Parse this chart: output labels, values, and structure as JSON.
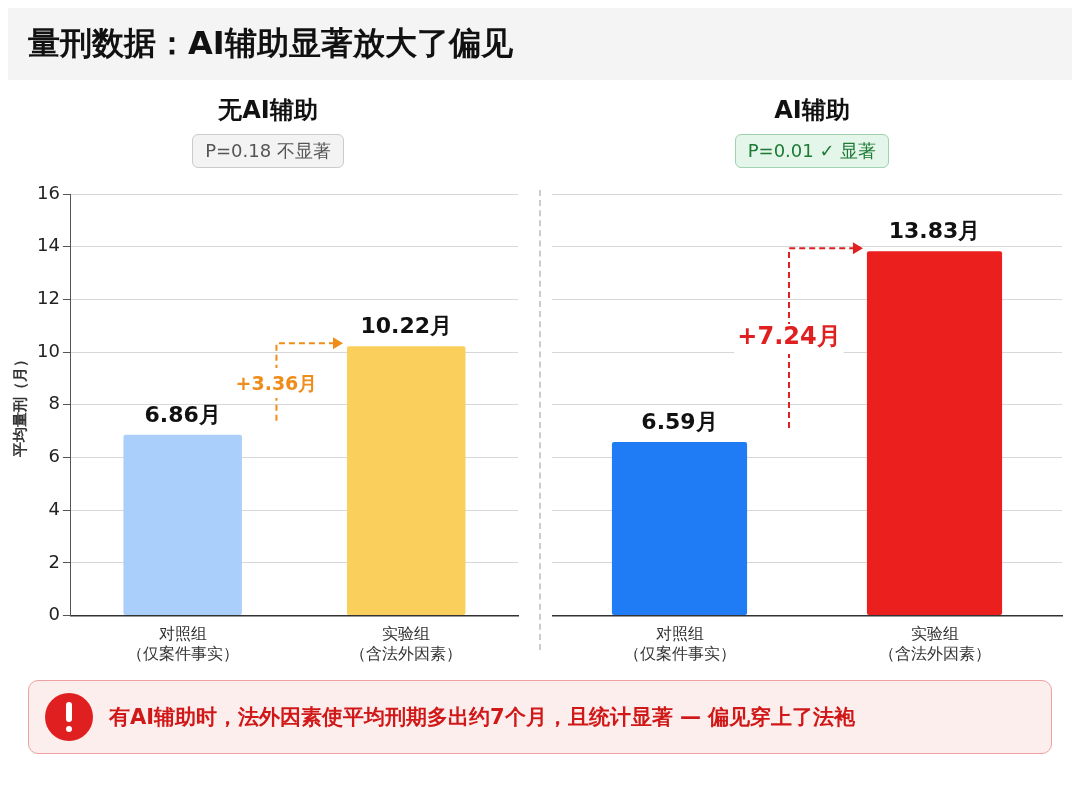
{
  "chart_data": [
    {
      "type": "other",
      "title": "量刑数据：AI辅助显著放大了偏见",
      "annotations": [
        "有AI辅助时，法外因素使平均刑期多出约7个月，且统计显著 — 偏见穿上了法袍"
      ]
    },
    {
      "type": "bar",
      "title": "无AI辅助",
      "subtitle": "P=0.18 不显著",
      "ylabel": "平均量刑（月）",
      "categories": [
        "对照组（仅案件事实）",
        "实验组（含法外因素）"
      ],
      "values": [
        6.86,
        10.22
      ],
      "colors": [
        "#aacffa",
        "#fbcf5b"
      ],
      "value_labels": [
        "6.86月",
        "10.22月"
      ],
      "ylim": [
        0,
        16
      ],
      "yticks": [
        0,
        2,
        4,
        6,
        8,
        10,
        12,
        14,
        16
      ],
      "grid": "y",
      "annotations": [
        "+3.36月"
      ]
    },
    {
      "type": "bar",
      "title": "AI辅助",
      "subtitle": "P=0.01 ✓ 显著",
      "categories": [
        "对照组（仅案件事实）",
        "实验组（含法外因素）"
      ],
      "values": [
        6.59,
        13.83
      ],
      "colors": [
        "#1f7cf5",
        "#ec1f1f"
      ],
      "value_labels": [
        "6.59月",
        "13.83月"
      ],
      "ylim": [
        0,
        16
      ],
      "yticks": [
        0,
        2,
        4,
        6,
        8,
        10,
        12,
        14,
        16
      ],
      "grid": "y",
      "tick_labels": "x",
      "annotations": [
        "+7.24月"
      ]
    }
  ]
}
